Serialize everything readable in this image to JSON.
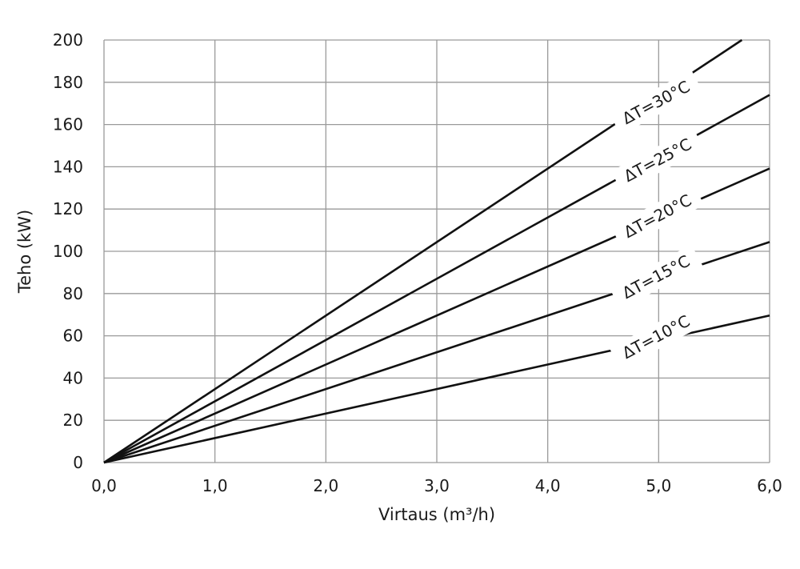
{
  "chart_data": {
    "type": "line",
    "title": "",
    "xlabel": "Virtaus (m³/h)",
    "ylabel": "Teho (kW)",
    "xlim": [
      0,
      6
    ],
    "ylim": [
      0,
      200
    ],
    "xticks": [
      0,
      1,
      2,
      3,
      4,
      5,
      6
    ],
    "xtick_labels": [
      "0,0",
      "1,0",
      "2,0",
      "3,0",
      "4,0",
      "5,0",
      "6,0"
    ],
    "yticks": [
      0,
      20,
      40,
      60,
      80,
      100,
      120,
      140,
      160,
      180,
      200
    ],
    "ytick_labels": [
      "0",
      "20",
      "40",
      "60",
      "80",
      "100",
      "120",
      "140",
      "160",
      "180",
      "200"
    ],
    "grid": true,
    "series": [
      {
        "name": "ΔT=10°C",
        "x": [
          0,
          6
        ],
        "y": [
          0,
          69.6
        ]
      },
      {
        "name": "ΔT=15°C",
        "x": [
          0,
          6
        ],
        "y": [
          0,
          104.4
        ]
      },
      {
        "name": "ΔT=20°C",
        "x": [
          0,
          6
        ],
        "y": [
          0,
          139.2
        ]
      },
      {
        "name": "ΔT=25°C",
        "x": [
          0,
          6
        ],
        "y": [
          0,
          174
        ]
      },
      {
        "name": "ΔT=30°C",
        "x": [
          0,
          5.75
        ],
        "y": [
          0,
          200
        ]
      }
    ],
    "colors": {
      "line": "#111111",
      "grid": "#9a9a9a",
      "axis": "#666666"
    }
  }
}
